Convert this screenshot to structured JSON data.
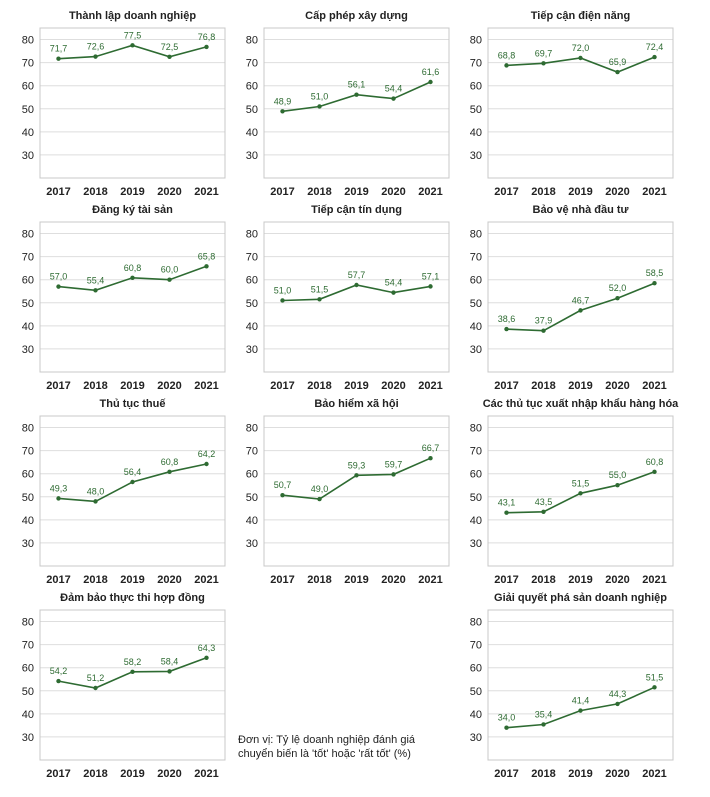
{
  "colors": {
    "line": "#2e6b32",
    "grid": "#dedede",
    "frame": "#c8c8c8",
    "text": "#222222",
    "label": "#2e6b32"
  },
  "y_axis": {
    "ticks": [
      30,
      40,
      50,
      60,
      70,
      80
    ]
  },
  "x_axis": {
    "categories": [
      "2017",
      "2018",
      "2019",
      "2020",
      "2021"
    ]
  },
  "note": {
    "line1": "Đơn vị: Tỷ lệ doanh nghiệp đánh giá",
    "line2": "chuyển biến là 'tốt' hoặc 'rất tốt' (%)"
  },
  "chart_data": [
    {
      "type": "line",
      "title": "Thành lập doanh nghiệp",
      "categories": [
        "2017",
        "2018",
        "2019",
        "2020",
        "2021"
      ],
      "values": [
        71.7,
        72.6,
        77.5,
        72.5,
        76.8
      ],
      "labels": [
        "71,7",
        "72,6",
        "77,5",
        "72,5",
        "76,8"
      ],
      "ylim": [
        20,
        85
      ]
    },
    {
      "type": "line",
      "title": "Cấp phép xây dựng",
      "categories": [
        "2017",
        "2018",
        "2019",
        "2020",
        "2021"
      ],
      "values": [
        48.9,
        51.0,
        56.1,
        54.4,
        61.6
      ],
      "labels": [
        "48,9",
        "51,0",
        "56,1",
        "54,4",
        "61,6"
      ],
      "ylim": [
        20,
        85
      ]
    },
    {
      "type": "line",
      "title": "Tiếp cận điện năng",
      "categories": [
        "2017",
        "2018",
        "2019",
        "2020",
        "2021"
      ],
      "values": [
        68.8,
        69.7,
        72.0,
        65.9,
        72.4
      ],
      "labels": [
        "68,8",
        "69,7",
        "72,0",
        "65,9",
        "72,4"
      ],
      "ylim": [
        20,
        85
      ]
    },
    {
      "type": "line",
      "title": "Đăng ký tài sản",
      "categories": [
        "2017",
        "2018",
        "2019",
        "2020",
        "2021"
      ],
      "values": [
        57.0,
        55.4,
        60.8,
        60.0,
        65.8
      ],
      "labels": [
        "57,0",
        "55,4",
        "60,8",
        "60,0",
        "65,8"
      ],
      "ylim": [
        20,
        85
      ]
    },
    {
      "type": "line",
      "title": "Tiếp cận tín dụng",
      "categories": [
        "2017",
        "2018",
        "2019",
        "2020",
        "2021"
      ],
      "values": [
        51.0,
        51.5,
        57.7,
        54.4,
        57.1
      ],
      "labels": [
        "51,0",
        "51,5",
        "57,7",
        "54,4",
        "57,1"
      ],
      "ylim": [
        20,
        85
      ]
    },
    {
      "type": "line",
      "title": "Bảo vệ nhà đầu tư",
      "categories": [
        "2017",
        "2018",
        "2019",
        "2020",
        "2021"
      ],
      "values": [
        38.6,
        37.9,
        46.7,
        52.0,
        58.5
      ],
      "labels": [
        "38,6",
        "37,9",
        "46,7",
        "52,0",
        "58,5"
      ],
      "ylim": [
        20,
        85
      ]
    },
    {
      "type": "line",
      "title": "Thủ tục thuế",
      "categories": [
        "2017",
        "2018",
        "2019",
        "2020",
        "2021"
      ],
      "values": [
        49.3,
        48.0,
        56.4,
        60.8,
        64.2
      ],
      "labels": [
        "49,3",
        "48,0",
        "56,4",
        "60,8",
        "64,2"
      ],
      "ylim": [
        20,
        85
      ]
    },
    {
      "type": "line",
      "title": "Bảo hiểm xã hội",
      "categories": [
        "2017",
        "2018",
        "2019",
        "2020",
        "2021"
      ],
      "values": [
        50.7,
        49.0,
        59.3,
        59.7,
        66.7
      ],
      "labels": [
        "50,7",
        "49,0",
        "59,3",
        "59,7",
        "66,7"
      ],
      "ylim": [
        20,
        85
      ]
    },
    {
      "type": "line",
      "title": "Các thủ tục xuất nhập khẩu hàng hóa",
      "categories": [
        "2017",
        "2018",
        "2019",
        "2020",
        "2021"
      ],
      "values": [
        43.1,
        43.5,
        51.5,
        55.0,
        60.8
      ],
      "labels": [
        "43,1",
        "43,5",
        "51,5",
        "55,0",
        "60,8"
      ],
      "ylim": [
        20,
        85
      ]
    },
    {
      "type": "line",
      "title": "Đảm bảo thực thi hợp đồng",
      "categories": [
        "2017",
        "2018",
        "2019",
        "2020",
        "2021"
      ],
      "values": [
        54.2,
        51.2,
        58.2,
        58.4,
        64.3
      ],
      "labels": [
        "54,2",
        "51,2",
        "58,2",
        "58,4",
        "64,3"
      ],
      "ylim": [
        20,
        85
      ]
    },
    {
      "type": "line",
      "title": "Giải quyết phá sản doanh nghiệp",
      "categories": [
        "2017",
        "2018",
        "2019",
        "2020",
        "2021"
      ],
      "values": [
        34.0,
        35.4,
        41.4,
        44.3,
        51.5
      ],
      "labels": [
        "34,0",
        "35,4",
        "41,4",
        "44,3",
        "51,5"
      ],
      "ylim": [
        20,
        85
      ]
    }
  ]
}
